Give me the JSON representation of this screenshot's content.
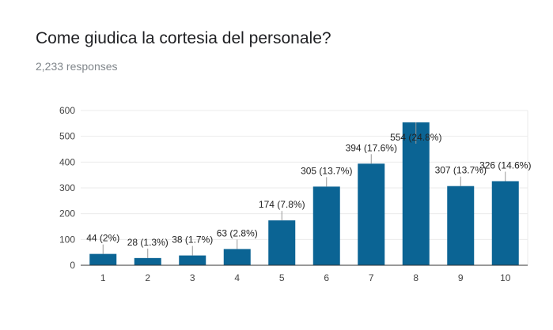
{
  "header": {
    "title": "Come giudica la cortesia del personale?",
    "responses": "2,233 responses"
  },
  "chart_data": {
    "type": "bar",
    "title": "Come giudica la cortesia del personale?",
    "subtitle": "2,233 responses",
    "xlabel": "",
    "ylabel": "",
    "categories": [
      "1",
      "2",
      "3",
      "4",
      "5",
      "6",
      "7",
      "8",
      "9",
      "10"
    ],
    "values": [
      44,
      28,
      38,
      63,
      174,
      305,
      394,
      554,
      307,
      326
    ],
    "data_labels": [
      "44 (2%)",
      "28 (1.3%)",
      "38 (1.7%)",
      "63 (2.8%)",
      "174 (7.8%)",
      "305 (13.7%)",
      "394 (17.6%)",
      "554 (24.8%)",
      "307 (13.7%)",
      "326 (14.6%)"
    ],
    "ylim": [
      0,
      600
    ],
    "yticks": [
      "0",
      "100",
      "200",
      "300",
      "400",
      "500",
      "600"
    ],
    "grid": true,
    "legend": "none",
    "bar_color": "#0b6494"
  }
}
